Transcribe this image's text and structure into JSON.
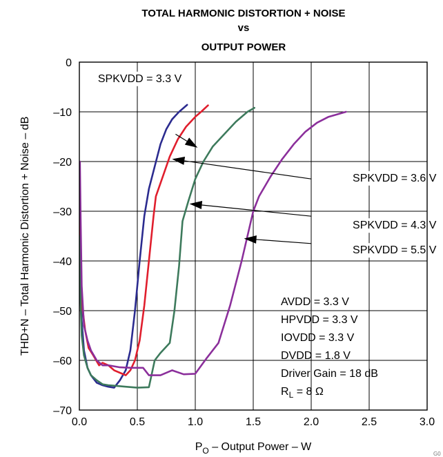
{
  "chart_data": {
    "type": "line",
    "title": [
      "TOTAL HARMONIC DISTORTION + NOISE",
      "vs",
      "OUTPUT POWER"
    ],
    "xlabel": "P",
    "xlabel_sub": "O",
    "xlabel_rest": " – Output Power – W",
    "ylabel": "THD+N – Total Harmonic Distortion + Noise – dB",
    "xlim": [
      0,
      3.0
    ],
    "ylim": [
      -70,
      0
    ],
    "xticks": [
      {
        "value": 0,
        "label": "0.0"
      },
      {
        "value": 0.5,
        "label": "0.5"
      },
      {
        "value": 1.0,
        "label": "1.0"
      },
      {
        "value": 1.5,
        "label": "1.5"
      },
      {
        "value": 2.0,
        "label": "2.0"
      },
      {
        "value": 2.5,
        "label": "2.5"
      },
      {
        "value": 3.0,
        "label": "3.0"
      }
    ],
    "yticks": [
      {
        "value": 0,
        "label": "0"
      },
      {
        "value": -10,
        "label": "–10"
      },
      {
        "value": -20,
        "label": "–20"
      },
      {
        "value": -30,
        "label": "–30"
      },
      {
        "value": -40,
        "label": "–40"
      },
      {
        "value": -50,
        "label": "–50"
      },
      {
        "value": -60,
        "label": "–60"
      },
      {
        "value": -70,
        "label": "–70"
      }
    ],
    "grid": true,
    "series": [
      {
        "name": "SPKVDD = 3.3 V",
        "color": "#2b2b8f",
        "points": [
          [
            0.005,
            -30
          ],
          [
            0.01,
            -40
          ],
          [
            0.02,
            -52
          ],
          [
            0.04,
            -58
          ],
          [
            0.07,
            -61.5
          ],
          [
            0.1,
            -63
          ],
          [
            0.15,
            -64.5
          ],
          [
            0.2,
            -65
          ],
          [
            0.25,
            -65.3
          ],
          [
            0.3,
            -65.5
          ],
          [
            0.35,
            -64
          ],
          [
            0.4,
            -62
          ],
          [
            0.44,
            -58
          ],
          [
            0.48,
            -50
          ],
          [
            0.52,
            -40
          ],
          [
            0.56,
            -31
          ],
          [
            0.6,
            -25.5
          ],
          [
            0.65,
            -21
          ],
          [
            0.7,
            -16.5
          ],
          [
            0.75,
            -13.5
          ],
          [
            0.8,
            -11.5
          ],
          [
            0.86,
            -10
          ],
          [
            0.93,
            -8.6
          ]
        ]
      },
      {
        "name": "SPKVDD = 3.6 V",
        "color": "#e01e2d",
        "points": [
          [
            0.005,
            -30
          ],
          [
            0.01,
            -44
          ],
          [
            0.02,
            -49
          ],
          [
            0.03,
            -50
          ],
          [
            0.05,
            -54
          ],
          [
            0.08,
            -57.5
          ],
          [
            0.12,
            -59
          ],
          [
            0.17,
            -61
          ],
          [
            0.2,
            -60.5
          ],
          [
            0.25,
            -61
          ],
          [
            0.3,
            -62
          ],
          [
            0.35,
            -62.5
          ],
          [
            0.4,
            -63
          ],
          [
            0.44,
            -62
          ],
          [
            0.48,
            -60
          ],
          [
            0.52,
            -56
          ],
          [
            0.56,
            -49
          ],
          [
            0.6,
            -40
          ],
          [
            0.64,
            -31
          ],
          [
            0.66,
            -27
          ],
          [
            0.72,
            -23
          ],
          [
            0.78,
            -19
          ],
          [
            0.85,
            -15.5
          ],
          [
            0.92,
            -13
          ],
          [
            1.0,
            -11
          ],
          [
            1.05,
            -10
          ],
          [
            1.11,
            -8.7
          ]
        ]
      },
      {
        "name": "SPKVDD = 4.3 V",
        "color": "#3d7a5c",
        "points": [
          [
            0.005,
            -35
          ],
          [
            0.01,
            -48
          ],
          [
            0.02,
            -55
          ],
          [
            0.04,
            -59
          ],
          [
            0.07,
            -61.5
          ],
          [
            0.1,
            -63
          ],
          [
            0.15,
            -64
          ],
          [
            0.2,
            -64.8
          ],
          [
            0.25,
            -65
          ],
          [
            0.3,
            -65.1
          ],
          [
            0.4,
            -65.3
          ],
          [
            0.5,
            -65.5
          ],
          [
            0.6,
            -65.4
          ],
          [
            0.65,
            -60
          ],
          [
            0.7,
            -58.5
          ],
          [
            0.78,
            -56.5
          ],
          [
            0.82,
            -50
          ],
          [
            0.86,
            -41
          ],
          [
            0.89,
            -32
          ],
          [
            0.94,
            -28
          ],
          [
            1.0,
            -23.5
          ],
          [
            1.07,
            -20
          ],
          [
            1.15,
            -17
          ],
          [
            1.25,
            -14.5
          ],
          [
            1.35,
            -12
          ],
          [
            1.45,
            -10
          ],
          [
            1.51,
            -9.2
          ]
        ]
      },
      {
        "name": "SPKVDD = 5.5 V",
        "color": "#8b2f9b",
        "points": [
          [
            0.005,
            -20
          ],
          [
            0.01,
            -30
          ],
          [
            0.02,
            -45
          ],
          [
            0.04,
            -53
          ],
          [
            0.07,
            -56
          ],
          [
            0.1,
            -58
          ],
          [
            0.15,
            -60
          ],
          [
            0.2,
            -61
          ],
          [
            0.25,
            -61
          ],
          [
            0.3,
            -61.2
          ],
          [
            0.35,
            -61.4
          ],
          [
            0.45,
            -61.5
          ],
          [
            0.55,
            -61.5
          ],
          [
            0.6,
            -63
          ],
          [
            0.7,
            -63
          ],
          [
            0.8,
            -62
          ],
          [
            0.9,
            -62.8
          ],
          [
            1.0,
            -62.7
          ],
          [
            1.1,
            -59.5
          ],
          [
            1.2,
            -56.5
          ],
          [
            1.3,
            -49
          ],
          [
            1.4,
            -40
          ],
          [
            1.5,
            -30
          ],
          [
            1.55,
            -27
          ],
          [
            1.65,
            -23
          ],
          [
            1.75,
            -19.5
          ],
          [
            1.85,
            -16.5
          ],
          [
            1.95,
            -14
          ],
          [
            2.05,
            -12.2
          ],
          [
            2.15,
            -11
          ],
          [
            2.3,
            -10
          ]
        ]
      }
    ],
    "annotations": [
      {
        "label": "SPKVDD = 3.3 V",
        "text_xy": [
          0.16,
          -4
        ],
        "text_anchor": "start",
        "arrow_from": [
          0.83,
          -14.5
        ],
        "arrow_to": [
          1.02,
          -17.2
        ]
      },
      {
        "label": "SPKVDD = 3.6 V",
        "text_xy": [
          3.08,
          -24
        ],
        "text_anchor": "end",
        "arrow_from": [
          2.0,
          -23.5
        ],
        "arrow_to": [
          0.8,
          -19.5
        ]
      },
      {
        "label": "SPKVDD = 4.3 V",
        "text_xy": [
          3.08,
          -33.5
        ],
        "text_anchor": "end",
        "arrow_from": [
          2.0,
          -31
        ],
        "arrow_to": [
          0.95,
          -28.5
        ]
      },
      {
        "label": "SPKVDD = 5.5 V",
        "text_xy": [
          3.08,
          -38.5
        ],
        "text_anchor": "end",
        "arrow_from": [
          2.0,
          -36.5
        ],
        "arrow_to": [
          1.42,
          -35.5
        ]
      }
    ],
    "conditions": [
      "AVDD = 3.3 V",
      "HPVDD = 3.3 V",
      "IOVDD = 3.3 V",
      "DVDD = 1.8 V",
      "Driver Gain = 18 dB"
    ],
    "condition_rl": {
      "main": "R",
      "sub": "L",
      "rest": " = 8 Ω"
    },
    "corner_mark": "G0"
  }
}
